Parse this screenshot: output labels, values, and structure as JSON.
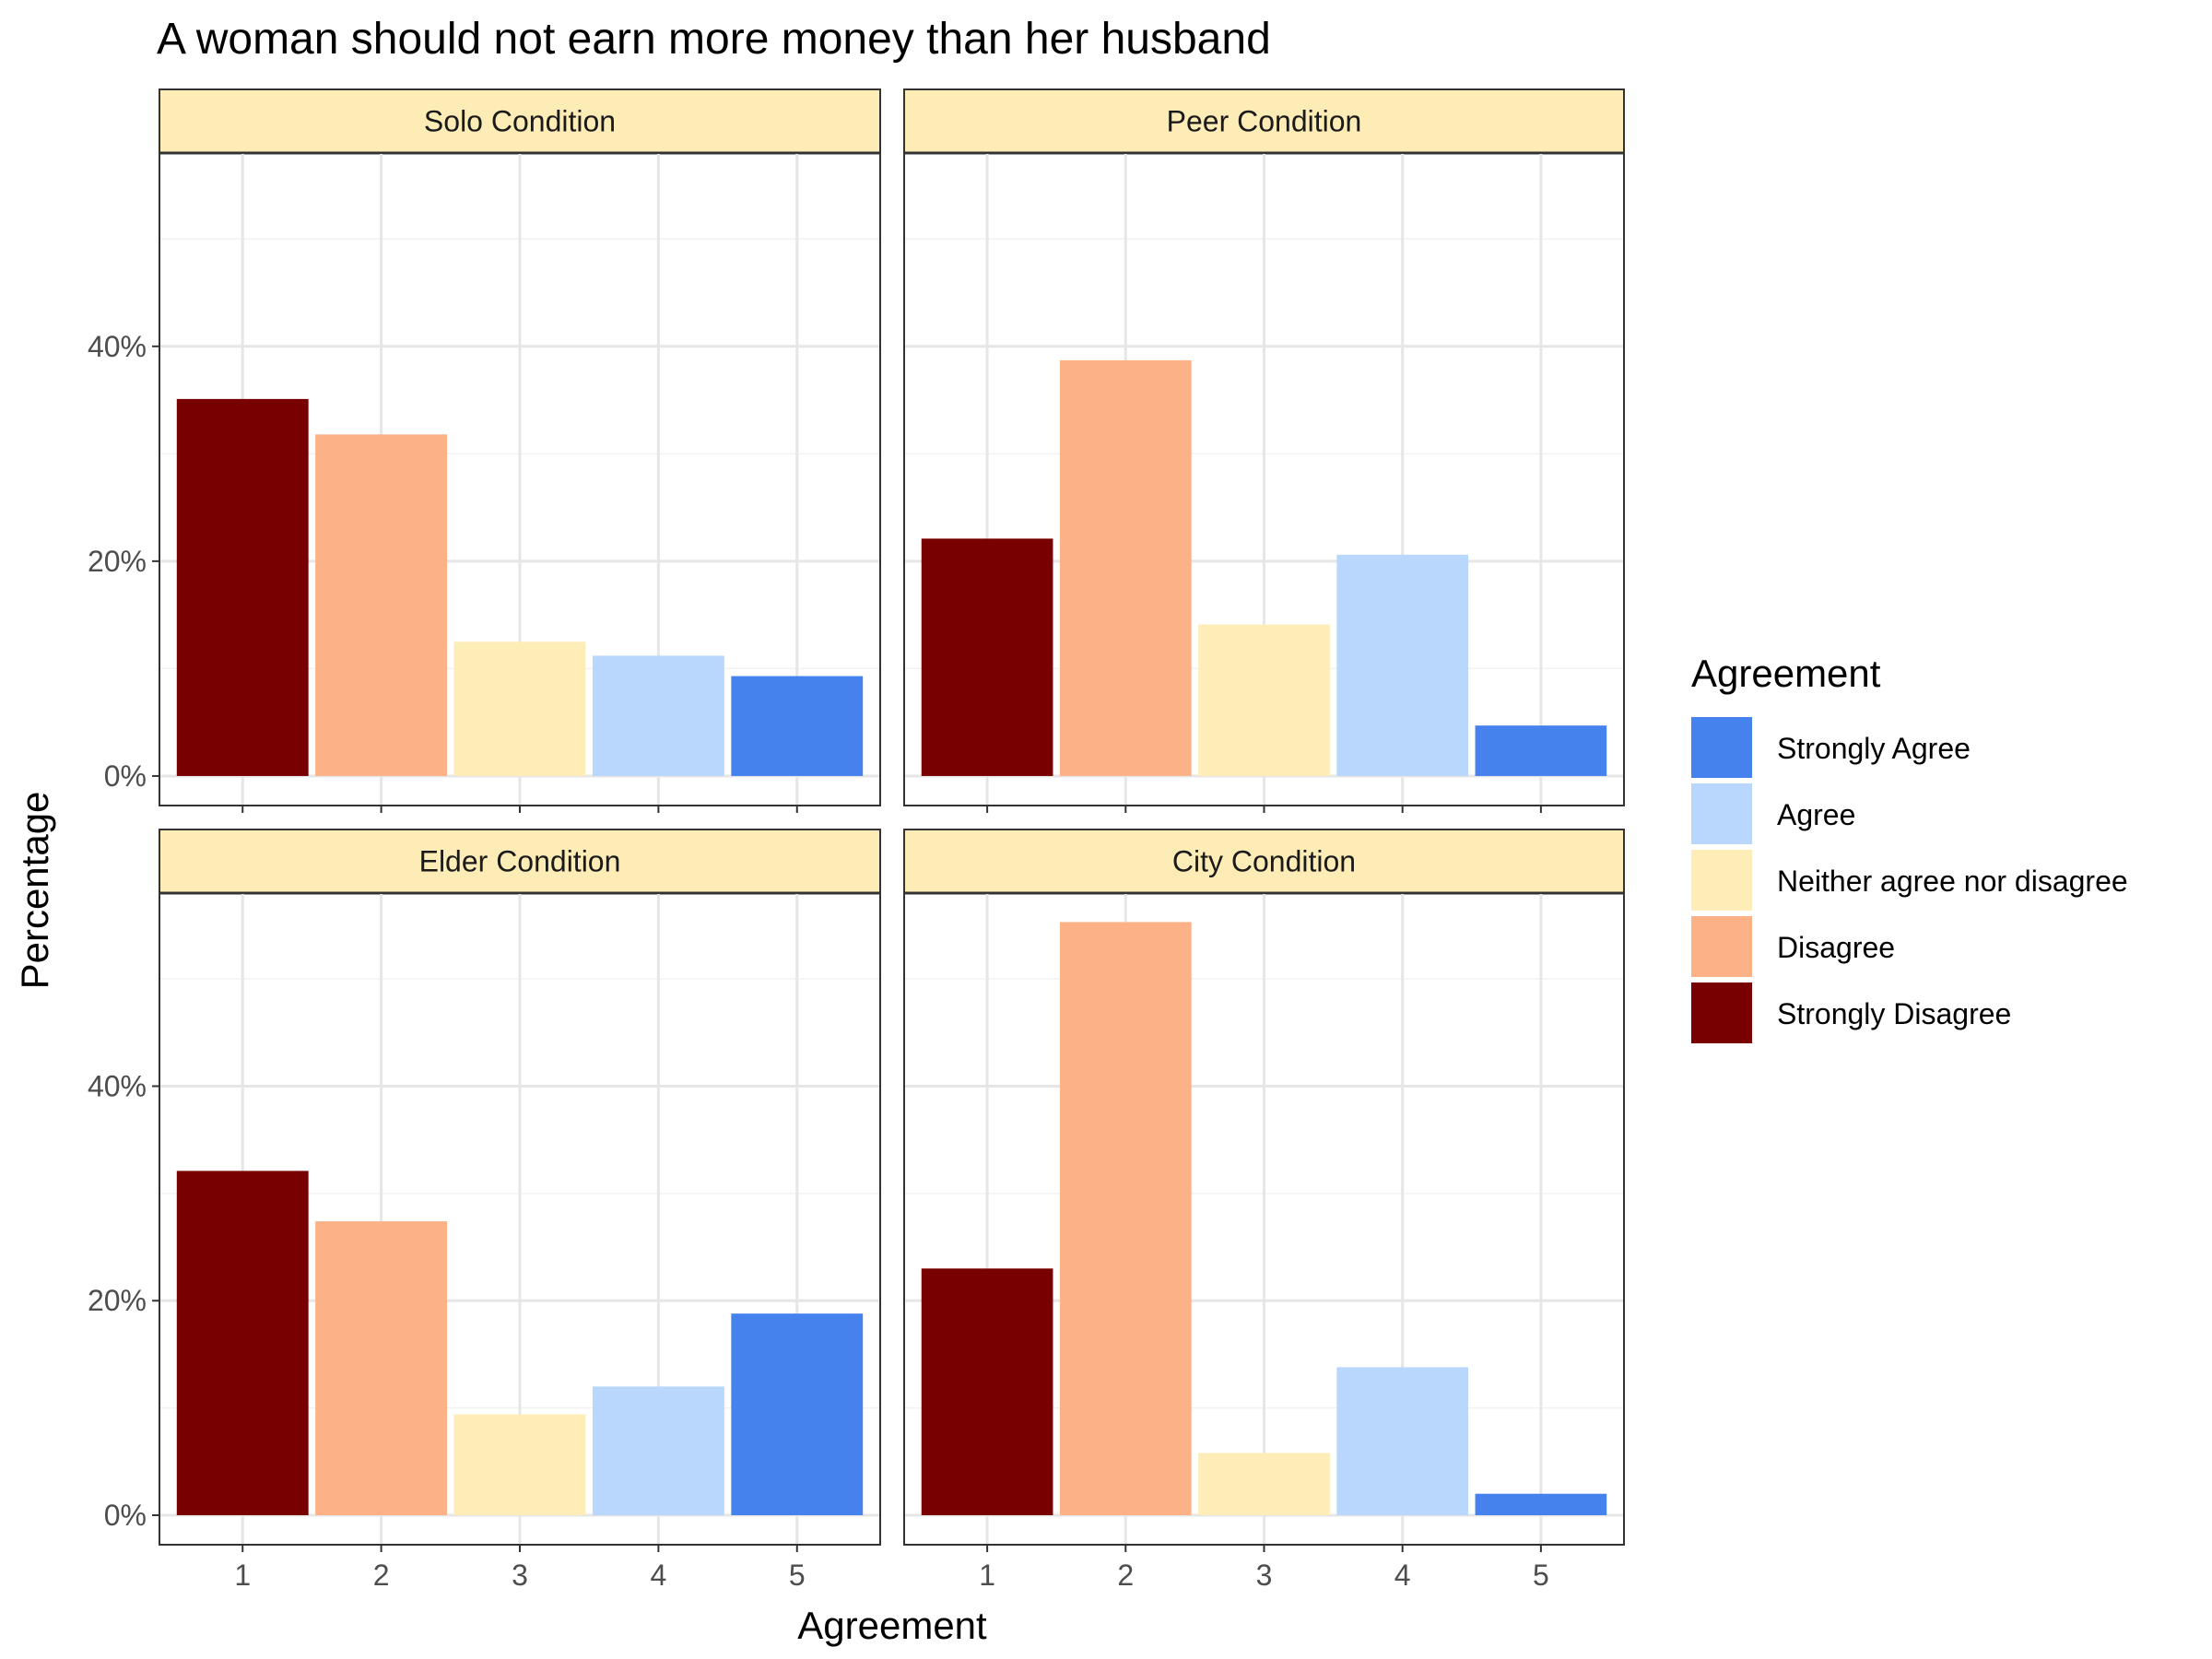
{
  "chart_data": {
    "type": "bar",
    "title": "A woman should not earn more money than her husband",
    "xlabel": "Agreement",
    "ylabel": "Percentage",
    "categories": [
      "1",
      "2",
      "3",
      "4",
      "5"
    ],
    "ylim": [
      0,
      0.58
    ],
    "y_ticks": [
      0,
      0.2,
      0.4
    ],
    "y_tick_labels": [
      "0%",
      "20%",
      "40%"
    ],
    "grid": true,
    "legend_position": "right",
    "legend": {
      "title": "Agreement",
      "entries": [
        {
          "label": "Strongly Agree",
          "color": "#4682ee"
        },
        {
          "label": "Agree",
          "color": "#b9d7fd"
        },
        {
          "label": "Neither agree nor disagree",
          "color": "#ffedb8"
        },
        {
          "label": "Disagree",
          "color": "#fcb187"
        },
        {
          "label": "Strongly Disagree",
          "color": "#780000"
        }
      ]
    },
    "bar_colors": [
      "#780000",
      "#fcb187",
      "#ffedb8",
      "#b9d7fd",
      "#4682ee"
    ],
    "panels": [
      {
        "name": "Solo Condition",
        "values": [
          0.351,
          0.318,
          0.125,
          0.112,
          0.093
        ]
      },
      {
        "name": "Peer Condition",
        "values": [
          0.221,
          0.387,
          0.141,
          0.206,
          0.047
        ]
      },
      {
        "name": "Elder Condition",
        "values": [
          0.321,
          0.274,
          0.094,
          0.12,
          0.188
        ]
      },
      {
        "name": "City Condition",
        "values": [
          0.23,
          0.553,
          0.058,
          0.138,
          0.02
        ]
      }
    ]
  },
  "colors": {
    "strip_fill": "#fdecb5",
    "grid_major": "#e6e6e6",
    "grid_minor": "#f2f2f2",
    "panel_border": "#333333"
  }
}
